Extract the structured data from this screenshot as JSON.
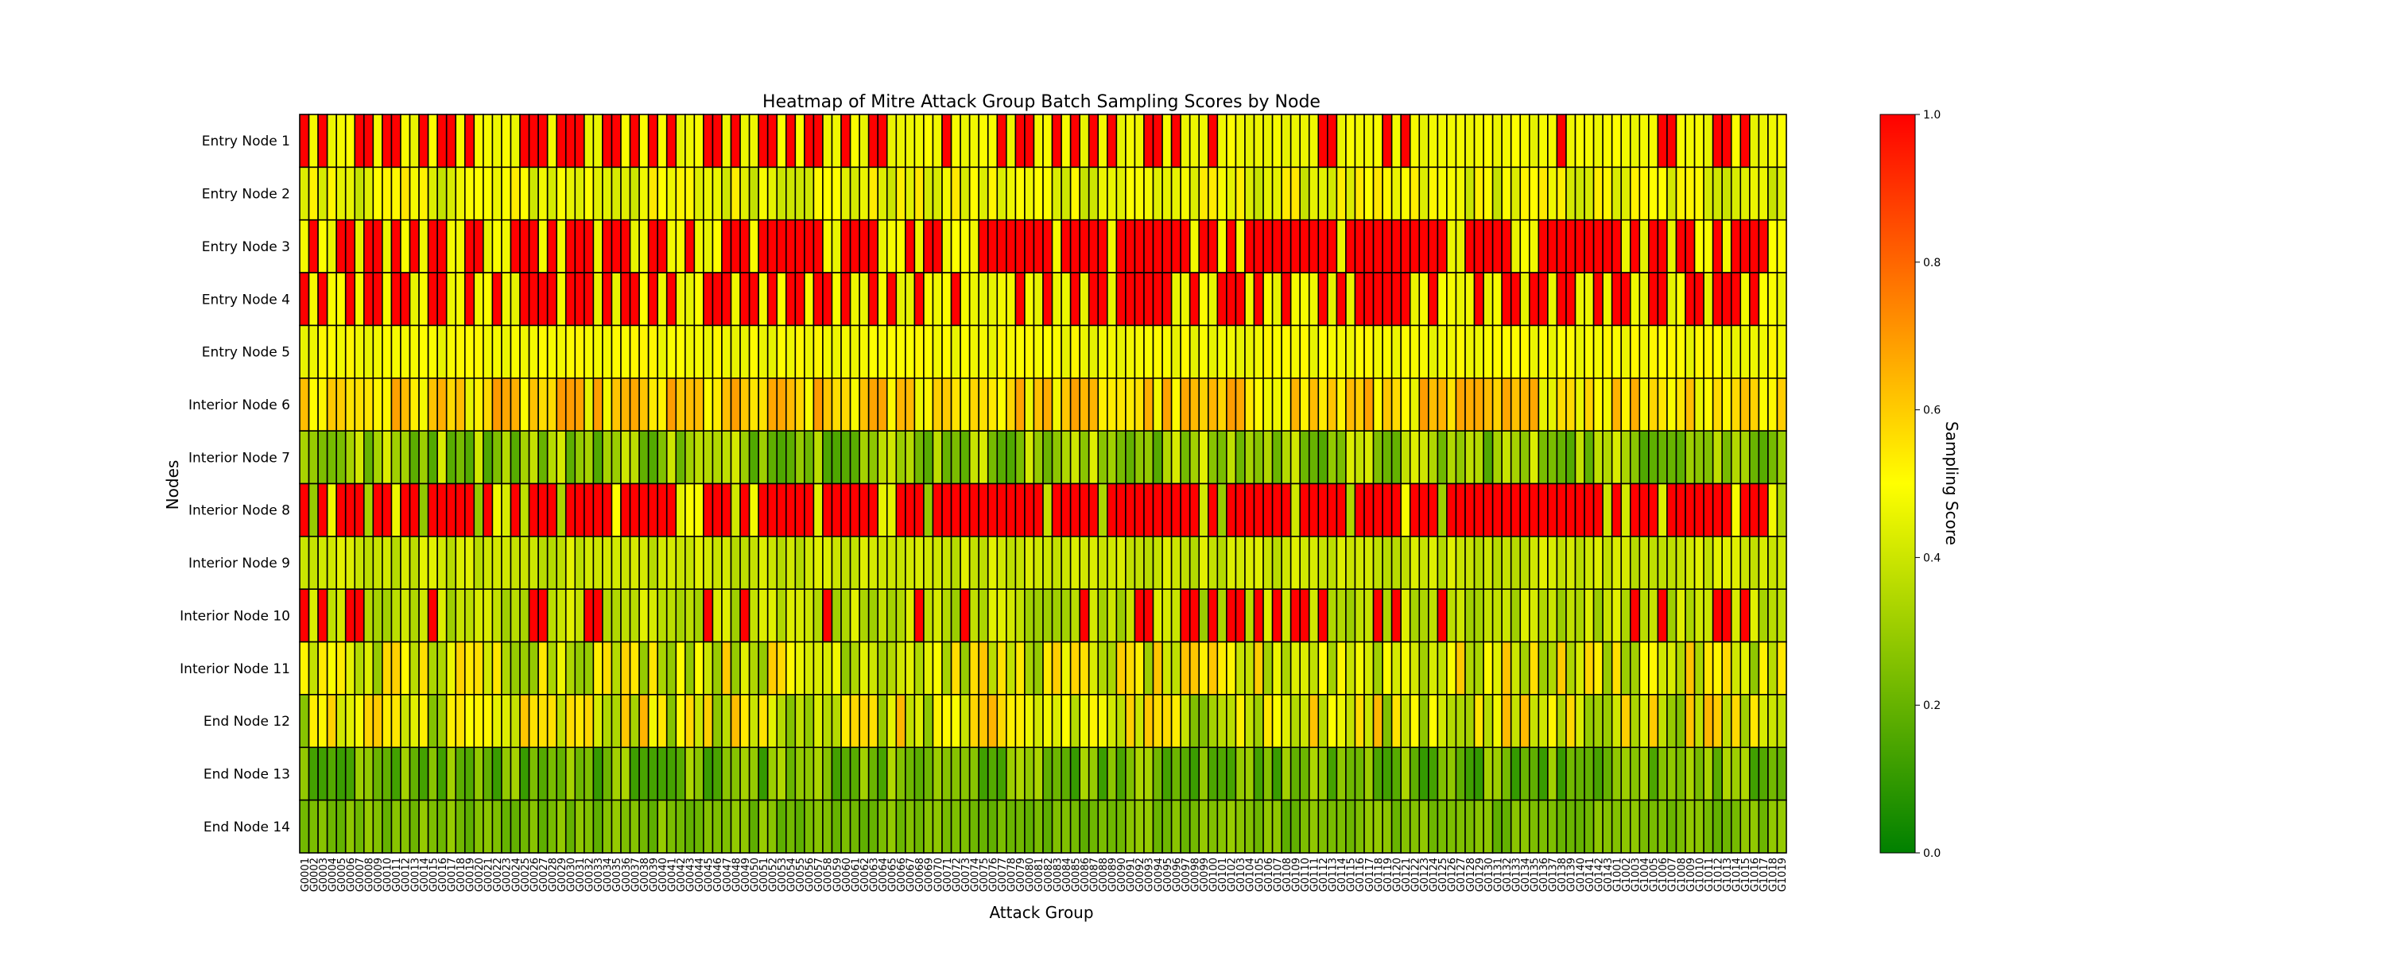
{
  "chart_data": {
    "type": "heatmap",
    "title": "Heatmap of Mitre Attack Group Batch Sampling Scores by Node",
    "xlabel": "Attack Group",
    "ylabel": "Nodes",
    "colorbar": {
      "label": "Sampling Score",
      "range": [
        0,
        1
      ],
      "ticks": [
        "0.0",
        "0.2",
        "0.4",
        "0.6",
        "0.8",
        "1.0"
      ],
      "colors": [
        "#008000",
        "#ffff00",
        "#ff0000"
      ]
    },
    "rows": [
      "Entry Node 1",
      "Entry Node 2",
      "Entry Node 3",
      "Entry Node 4",
      "Entry Node 5",
      "Interior Node 6",
      "Interior Node 7",
      "Interior Node 8",
      "Interior Node 9",
      "Interior Node 10",
      "Interior Node 11",
      "End Node 12",
      "End Node 13",
      "End Node 14"
    ],
    "columns": [
      "G0001",
      "G0002",
      "G0003",
      "G0004",
      "G0005",
      "G0006",
      "G0007",
      "G0008",
      "G0009",
      "G0010",
      "G0011",
      "G0012",
      "G0013",
      "G0014",
      "G0015",
      "G0016",
      "G0017",
      "G0018",
      "G0019",
      "G0020",
      "G0021",
      "G0022",
      "G0023",
      "G0024",
      "G0025",
      "G0026",
      "G0027",
      "G0028",
      "G0029",
      "G0030",
      "G0031",
      "G0032",
      "G0033",
      "G0034",
      "G0035",
      "G0036",
      "G0037",
      "G0038",
      "G0039",
      "G0040",
      "G0041",
      "G0042",
      "G0043",
      "G0044",
      "G0045",
      "G0046",
      "G0047",
      "G0048",
      "G0049",
      "G0050",
      "G0051",
      "G0052",
      "G0053",
      "G0054",
      "G0055",
      "G0056",
      "G0057",
      "G0058",
      "G0059",
      "G0060",
      "G0061",
      "G0062",
      "G0063",
      "G0064",
      "G0065",
      "G0066",
      "G0067",
      "G0068",
      "G0069",
      "G0070",
      "G0071",
      "G0072",
      "G0073",
      "G0074",
      "G0075",
      "G0076",
      "G0077",
      "G0078",
      "G0079",
      "G0080",
      "G0081",
      "G0082",
      "G0083",
      "G0084",
      "G0085",
      "G0086",
      "G0087",
      "G0088",
      "G0089",
      "G0090",
      "G0091",
      "G0092",
      "G0093",
      "G0094",
      "G0095",
      "G0096",
      "G0097",
      "G0098",
      "G0099",
      "G0100",
      "G0101",
      "G0102",
      "G0103",
      "G0104",
      "G0105",
      "G0106",
      "G0107",
      "G0108",
      "G0109",
      "G0110",
      "G0111",
      "G0112",
      "G0113",
      "G0114",
      "G0115",
      "G0116",
      "G0117",
      "G0118",
      "G0119",
      "G0120",
      "G0121",
      "G0122",
      "G0123",
      "G0124",
      "G0125",
      "G0126",
      "G0127",
      "G0128",
      "G0129",
      "G0130",
      "G0131",
      "G0132",
      "G0133",
      "G0134",
      "G0135",
      "G0136",
      "G0137",
      "G0138",
      "G0139",
      "G0140",
      "G0141",
      "G0142",
      "G0143",
      "G1001",
      "G1002",
      "G1003",
      "G1004",
      "G1005",
      "G1006",
      "G1007",
      "G1008",
      "G1009",
      "G1010",
      "G1011",
      "G1012",
      "G1013",
      "G1014",
      "G1015",
      "G1016",
      "G1017",
      "G1018",
      "G1019"
    ],
    "high_cells": {
      "Entry Node 1": [
        0,
        2,
        6,
        7,
        9,
        10,
        13,
        15,
        16,
        18,
        24,
        25,
        26,
        28,
        29,
        30,
        33,
        34,
        36,
        38,
        40,
        44,
        45,
        47,
        50,
        51,
        53,
        55,
        56,
        59,
        62,
        63,
        70,
        76,
        78,
        79,
        82,
        84,
        86,
        88,
        92,
        93,
        95,
        99,
        111,
        112,
        118,
        120,
        137,
        148,
        149,
        154,
        155,
        157
      ],
      "Entry Node 3": [
        1,
        4,
        5,
        7,
        8,
        10,
        12,
        14,
        15,
        18,
        19,
        23,
        24,
        25,
        27,
        29,
        30,
        31,
        33,
        34,
        35,
        38,
        39,
        42,
        46,
        47,
        48,
        50,
        51,
        52,
        53,
        54,
        55,
        56,
        59,
        60,
        61,
        62,
        66,
        68,
        69,
        74,
        75,
        76,
        77,
        78,
        79,
        80,
        81,
        83,
        84,
        85,
        86,
        87,
        89,
        90,
        91,
        92,
        93,
        94,
        95,
        96,
        98,
        99,
        101,
        103,
        104,
        105,
        106,
        107,
        108,
        109,
        110,
        111,
        112,
        114,
        115,
        116,
        117,
        118,
        119,
        120,
        121,
        122,
        123,
        124,
        127,
        128,
        129,
        130,
        131,
        135,
        136,
        137,
        138,
        139,
        140,
        141,
        142,
        143,
        145,
        147,
        148,
        150,
        151,
        154,
        156,
        157,
        158,
        159
      ],
      "Entry Node 4": [
        0,
        2,
        5,
        7,
        8,
        10,
        11,
        14,
        15,
        18,
        21,
        24,
        25,
        26,
        27,
        29,
        30,
        31,
        33,
        35,
        36,
        38,
        40,
        44,
        45,
        46,
        48,
        49,
        51,
        53,
        54,
        56,
        57,
        59,
        62,
        64,
        67,
        71,
        78,
        81,
        84,
        86,
        87,
        89,
        90,
        91,
        92,
        93,
        94,
        97,
        100,
        101,
        102,
        104,
        107,
        111,
        113,
        115,
        116,
        117,
        118,
        119,
        120,
        123,
        128,
        131,
        132,
        134,
        135,
        137,
        138,
        141,
        143,
        144,
        147,
        148,
        151,
        152,
        154,
        155,
        156,
        158
      ],
      "Interior Node 8": [
        0,
        2,
        4,
        5,
        6,
        8,
        9,
        11,
        12,
        14,
        15,
        16,
        17,
        18,
        20,
        23,
        25,
        26,
        27,
        29,
        30,
        31,
        32,
        33,
        35,
        36,
        37,
        38,
        39,
        40,
        44,
        45,
        46,
        48,
        50,
        51,
        52,
        53,
        54,
        55,
        57,
        58,
        59,
        60,
        61,
        62,
        65,
        66,
        67,
        69,
        70,
        71,
        72,
        73,
        74,
        75,
        76,
        77,
        78,
        79,
        80,
        82,
        83,
        84,
        85,
        86,
        88,
        89,
        90,
        91,
        92,
        93,
        94,
        95,
        96,
        97,
        99,
        101,
        102,
        103,
        104,
        105,
        106,
        107,
        109,
        110,
        111,
        112,
        113,
        115,
        116,
        117,
        118,
        119,
        121,
        122,
        123,
        125,
        126,
        127,
        128,
        129,
        130,
        131,
        132,
        133,
        134,
        135,
        136,
        137,
        138,
        139,
        140,
        141,
        143,
        145,
        146,
        147,
        149,
        150,
        151,
        152,
        153,
        154,
        155,
        157,
        158,
        159
      ],
      "Interior Node 10": [
        0,
        2,
        5,
        6,
        14,
        25,
        26,
        31,
        32,
        44,
        48,
        57,
        67,
        72,
        85,
        91,
        92,
        96,
        97,
        99,
        101,
        102,
        104,
        106,
        108,
        109,
        111,
        117,
        119,
        124,
        145,
        148,
        154,
        155,
        157
      ]
    },
    "row_bands": {
      "Entry Node 1": [
        0.45,
        0.5
      ],
      "Entry Node 2": [
        0.38,
        0.55
      ],
      "Entry Node 3": [
        0.45,
        0.5
      ],
      "Entry Node 4": [
        0.45,
        0.5
      ],
      "Entry Node 5": [
        0.45,
        0.52
      ],
      "Interior Node 6": [
        0.45,
        0.7
      ],
      "Interior Node 7": [
        0.15,
        0.45
      ],
      "Interior Node 8": [
        0.28,
        0.5
      ],
      "Interior Node 9": [
        0.35,
        0.45
      ],
      "Interior Node 10": [
        0.3,
        0.45
      ],
      "Interior Node 11": [
        0.28,
        0.62
      ],
      "End Node 12": [
        0.25,
        0.65
      ],
      "End Node 13": [
        0.1,
        0.35
      ],
      "End Node 14": [
        0.18,
        0.3
      ]
    }
  }
}
